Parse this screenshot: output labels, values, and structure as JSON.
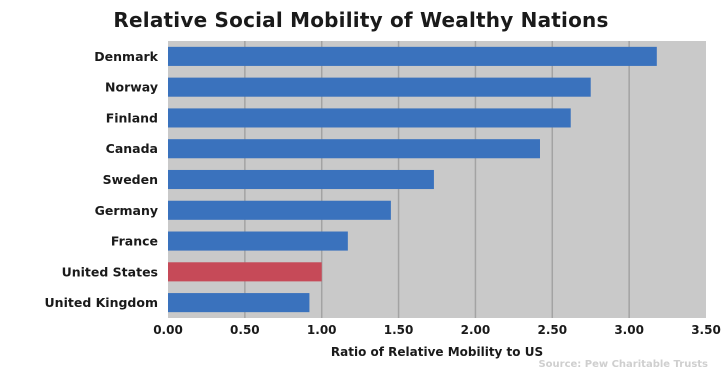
{
  "chart_data": {
    "type": "bar",
    "orientation": "horizontal",
    "title": "Relative Social Mobility of Wealthy Nations",
    "xlabel": "Ratio of Relative Mobility to US",
    "ylabel": "",
    "xlim": [
      0,
      3.5
    ],
    "xticks": [
      "0.00",
      "0.50",
      "1.00",
      "1.50",
      "2.00",
      "2.50",
      "3.00",
      "3.50"
    ],
    "categories": [
      "Denmark",
      "Norway",
      "Finland",
      "Canada",
      "Sweden",
      "Germany",
      "France",
      "United States",
      "United Kingdom"
    ],
    "values": [
      3.18,
      2.75,
      2.62,
      2.42,
      1.73,
      1.45,
      1.17,
      1.0,
      0.92
    ],
    "highlight": "United States",
    "colors": {
      "bar": "#3a72bd",
      "highlight": "#c64a58",
      "plot_background": "#c9c9c9",
      "grid": "#a3a3a3"
    },
    "grid": true,
    "source": "Source: Pew Charitable Trusts"
  }
}
